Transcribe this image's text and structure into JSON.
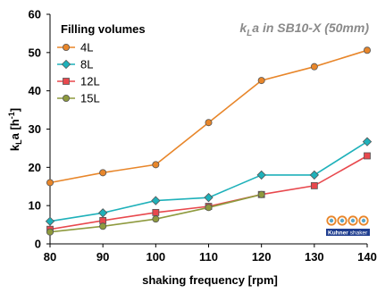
{
  "chart_data": {
    "type": "line",
    "xlabel": "shaking frequency [rpm]",
    "ylabel": "kLa [h-1]",
    "xlim": [
      80,
      140
    ],
    "ylim": [
      0,
      60
    ],
    "x_ticks": [
      "80",
      "90",
      "100",
      "110",
      "120",
      "130",
      "140"
    ],
    "y_ticks": [
      "0",
      "10",
      "20",
      "30",
      "40",
      "50",
      "60"
    ],
    "legend_title": "Filling volumes",
    "legend_position": "top-left",
    "annotation": {
      "k": "k",
      "sub": "L",
      "rest": "a in SB10-X (50mm)"
    },
    "logo_text": {
      "left": "Kuhner",
      "right": "shaker"
    },
    "grid": false,
    "series": [
      {
        "name": "4L",
        "color": "#e8862a",
        "marker": "circle",
        "x": [
          80,
          90,
          100,
          110,
          120,
          130,
          140
        ],
        "values": [
          16.0,
          18.6,
          20.7,
          31.7,
          42.7,
          46.3,
          50.6
        ]
      },
      {
        "name": "8L",
        "color": "#1fb1ba",
        "marker": "diamond",
        "x": [
          80,
          90,
          100,
          110,
          120,
          130,
          140
        ],
        "values": [
          5.9,
          8.1,
          11.3,
          12.1,
          18.0,
          18.0,
          26.7
        ]
      },
      {
        "name": "12L",
        "color": "#e8484d",
        "marker": "square",
        "x": [
          80,
          90,
          100,
          110,
          120,
          130,
          140
        ],
        "values": [
          3.8,
          6.1,
          8.2,
          9.8,
          12.9,
          15.2,
          23.0
        ]
      },
      {
        "name": "15L",
        "color": "#8e9a3e",
        "marker": "circle",
        "x": [
          80,
          90,
          100,
          110,
          120
        ],
        "values": [
          3.1,
          4.6,
          6.5,
          9.5,
          12.9
        ]
      }
    ]
  }
}
